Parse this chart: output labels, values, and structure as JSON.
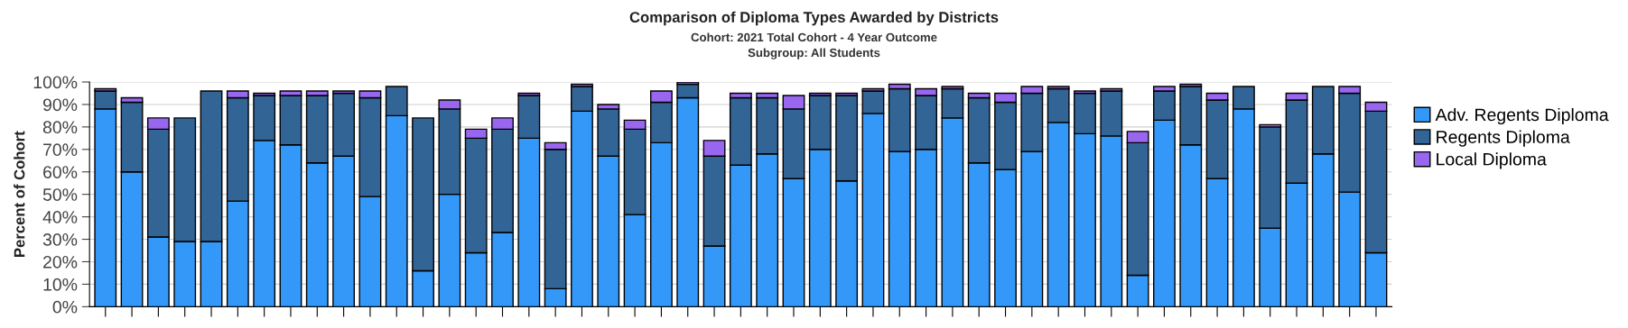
{
  "chart_data": {
    "type": "bar",
    "title": "Comparison of Diploma Types Awarded by Districts",
    "subtitle": "Cohort: 2021 Total Cohort - 4 Year Outcome\nSubgroup: All Students",
    "ylabel": "Percent of Cohort",
    "stacked": true,
    "categories": [
      null,
      null,
      null,
      null,
      null,
      null,
      null,
      null,
      null,
      null,
      null,
      null,
      null,
      null,
      null,
      null,
      null,
      null,
      null,
      null,
      null,
      null,
      null,
      null,
      null,
      null,
      null,
      null,
      null,
      null,
      null,
      null,
      null,
      null,
      null,
      null,
      null,
      null,
      null,
      null,
      null,
      null,
      null,
      null,
      null,
      null,
      null,
      null,
      null
    ],
    "series": [
      {
        "name": "Adv. Regents Diploma",
        "color": "#3498f8",
        "values": [
          88,
          60,
          31,
          29,
          29,
          47,
          74,
          72,
          64,
          67,
          49,
          85,
          16,
          50,
          24,
          33,
          75,
          8,
          87,
          67,
          41,
          73,
          93,
          27,
          63,
          68,
          57,
          70,
          56,
          86,
          69,
          70,
          84,
          64,
          61,
          69,
          82,
          77,
          76,
          14,
          83,
          72,
          57,
          88,
          35,
          55,
          68,
          51,
          24
        ]
      },
      {
        "name": "Regents Diploma",
        "color": "#326496",
        "values": [
          8,
          31,
          48,
          55,
          67,
          46,
          20,
          22,
          30,
          28,
          44,
          13,
          68,
          38,
          51,
          46,
          19,
          62,
          11,
          21,
          38,
          18,
          6,
          40,
          30,
          25,
          31,
          24,
          38,
          10,
          28,
          24,
          13,
          29,
          30,
          26,
          15,
          18,
          20,
          59,
          13,
          26,
          35,
          10,
          45,
          37,
          30,
          44,
          63
        ]
      },
      {
        "name": "Local Diploma",
        "color": "#9966f0",
        "values": [
          1,
          2,
          5,
          0,
          0,
          3,
          1,
          2,
          2,
          1,
          3,
          0,
          0,
          4,
          4,
          5,
          1,
          3,
          1,
          2,
          4,
          5,
          1,
          7,
          2,
          2,
          6,
          1,
          1,
          1,
          2,
          3,
          1,
          2,
          4,
          3,
          1,
          1,
          1,
          5,
          2,
          1,
          3,
          0,
          1,
          3,
          0,
          3,
          4
        ]
      }
    ],
    "ylim": [
      0,
      100
    ],
    "yticks": [
      {
        "value": 0,
        "label": "0%"
      },
      {
        "value": 10,
        "label": "10%"
      },
      {
        "value": 20,
        "label": "20%"
      },
      {
        "value": 30,
        "label": "30%"
      },
      {
        "value": 40,
        "label": "40%"
      },
      {
        "value": 50,
        "label": "50%"
      },
      {
        "value": 60,
        "label": "60%"
      },
      {
        "value": 70,
        "label": "70%"
      },
      {
        "value": 80,
        "label": "80%"
      },
      {
        "value": 90,
        "label": "90%"
      },
      {
        "value": 100,
        "label": "100%"
      }
    ],
    "grid": "y",
    "legend": "right"
  }
}
